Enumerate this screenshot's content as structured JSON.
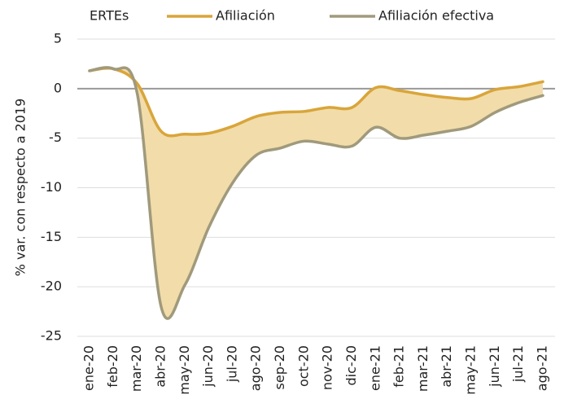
{
  "chart_data": {
    "type": "line",
    "categories": [
      "ene-20",
      "feb-20",
      "mar-20",
      "abr-20",
      "may-20",
      "jun-20",
      "jul-20",
      "ago-20",
      "sep-20",
      "oct-20",
      "nov-20",
      "dic-20",
      "ene-21",
      "feb-21",
      "mar-21",
      "abr-21",
      "may-21",
      "jun-21",
      "jul-21",
      "ago-21"
    ],
    "series": [
      {
        "name": "Afiliación",
        "color": "#d9a53a",
        "values": [
          1.8,
          2.0,
          0.5,
          -4.3,
          -4.6,
          -4.5,
          -3.8,
          -2.8,
          -2.4,
          -2.3,
          -1.9,
          -1.9,
          0.1,
          -0.2,
          -0.6,
          -0.9,
          -1.0,
          -0.1,
          0.2,
          0.7
        ]
      },
      {
        "name": "Afiliación efectiva",
        "color": "#a09a7c",
        "values": [
          1.8,
          2.0,
          -0.5,
          -22.0,
          -19.8,
          -14.0,
          -9.5,
          -6.7,
          -6.0,
          -5.3,
          -5.6,
          -5.8,
          -3.9,
          -5.0,
          -4.7,
          -4.3,
          -3.8,
          -2.4,
          -1.4,
          -0.7
        ]
      }
    ],
    "area": {
      "name": "ERTEs",
      "color": "#f2dcaa"
    },
    "ylabel": "% var. con respecto a 2019",
    "ylim": [
      -25,
      5
    ],
    "yticks": [
      5,
      0,
      -5,
      -10,
      -15,
      -20,
      -25
    ],
    "grid": true
  }
}
